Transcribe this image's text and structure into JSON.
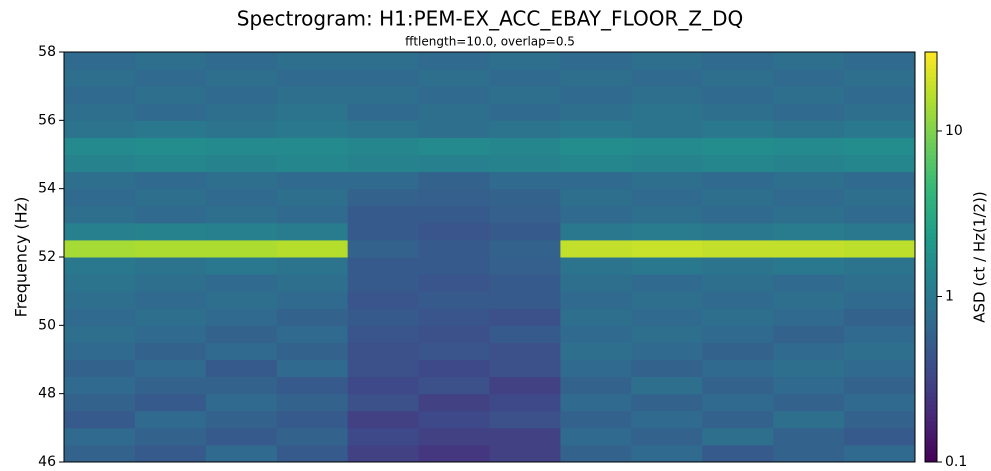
{
  "chart_data": {
    "type": "heatmap",
    "title": "Spectrogram: H1:PEM-EX_ACC_EBAY_FLOOR_Z_DQ",
    "subtitle": "fftlength=10.0, overlap=0.5",
    "ylabel": "Frequency (Hz)",
    "colorbar_label": "ASD (ct / Hz(1/2))",
    "colormap": "viridis",
    "color_log": true,
    "clim": [
      0.1,
      30
    ],
    "cticks": [
      0.1,
      1,
      10
    ],
    "ylim": [
      46,
      58
    ],
    "yticks": [
      46,
      48,
      50,
      52,
      54,
      56,
      58
    ],
    "ybins": [
      46,
      46.5,
      47,
      47.5,
      48,
      48.5,
      49,
      49.5,
      50,
      50.5,
      51,
      51.5,
      52,
      52.5,
      53,
      53.5,
      54,
      54.5,
      55,
      55.5,
      56,
      56.5,
      57,
      57.5,
      58
    ],
    "z": [
      [
        0.6,
        0.5,
        0.7,
        0.5,
        0.3,
        0.25,
        0.3,
        0.6,
        0.7,
        0.5,
        0.6,
        0.7
      ],
      [
        0.7,
        0.6,
        0.5,
        0.6,
        0.35,
        0.3,
        0.3,
        0.7,
        0.6,
        0.8,
        0.6,
        0.5
      ],
      [
        0.5,
        0.7,
        0.6,
        0.5,
        0.3,
        0.35,
        0.4,
        0.6,
        0.7,
        0.6,
        0.8,
        0.6
      ],
      [
        0.6,
        0.5,
        0.7,
        0.6,
        0.4,
        0.3,
        0.35,
        0.7,
        0.6,
        0.7,
        0.6,
        0.7
      ],
      [
        0.7,
        0.6,
        0.6,
        0.5,
        0.35,
        0.4,
        0.3,
        0.6,
        0.8,
        0.6,
        0.7,
        0.6
      ],
      [
        0.6,
        0.7,
        0.5,
        0.7,
        0.4,
        0.35,
        0.4,
        0.7,
        0.6,
        0.7,
        0.8,
        0.7
      ],
      [
        0.7,
        0.6,
        0.7,
        0.6,
        0.4,
        0.45,
        0.4,
        0.8,
        0.7,
        0.6,
        0.7,
        0.8
      ],
      [
        0.8,
        0.7,
        0.6,
        0.7,
        0.45,
        0.4,
        0.5,
        0.7,
        0.8,
        0.7,
        0.6,
        0.7
      ],
      [
        0.7,
        0.8,
        0.7,
        0.6,
        0.5,
        0.45,
        0.4,
        0.8,
        0.7,
        0.8,
        0.7,
        0.6
      ],
      [
        0.8,
        0.7,
        0.8,
        0.7,
        0.45,
        0.5,
        0.5,
        0.7,
        0.8,
        0.7,
        0.8,
        0.7
      ],
      [
        0.9,
        0.8,
        0.7,
        0.8,
        0.5,
        0.45,
        0.5,
        0.8,
        0.7,
        0.8,
        0.7,
        0.8
      ],
      [
        1.0,
        0.9,
        1.0,
        0.9,
        0.5,
        0.5,
        0.55,
        0.9,
        1.0,
        0.9,
        1.0,
        0.9
      ],
      [
        14,
        15,
        15,
        16,
        0.6,
        0.5,
        0.6,
        18,
        19,
        18,
        18,
        17
      ],
      [
        1.2,
        1.3,
        1.2,
        1.1,
        0.5,
        0.45,
        0.5,
        1.0,
        1.1,
        1.0,
        1.1,
        1.0
      ],
      [
        0.8,
        0.7,
        0.8,
        0.7,
        0.5,
        0.5,
        0.55,
        0.7,
        0.8,
        0.7,
        0.8,
        0.7
      ],
      [
        0.7,
        0.8,
        0.7,
        0.8,
        0.6,
        0.55,
        0.6,
        0.8,
        0.7,
        0.8,
        0.7,
        0.8
      ],
      [
        0.8,
        0.7,
        0.8,
        0.7,
        0.7,
        0.6,
        0.7,
        0.7,
        0.8,
        0.7,
        0.8,
        0.7
      ],
      [
        1.3,
        1.4,
        1.3,
        1.4,
        1.3,
        1.2,
        1.3,
        1.4,
        1.3,
        1.4,
        1.3,
        1.4
      ],
      [
        1.5,
        1.6,
        1.5,
        1.5,
        1.4,
        1.5,
        1.4,
        1.6,
        1.5,
        1.6,
        1.5,
        1.6
      ],
      [
        0.9,
        1.0,
        0.9,
        1.0,
        0.9,
        0.8,
        0.9,
        1.0,
        0.9,
        1.0,
        0.9,
        1.0
      ],
      [
        0.8,
        0.7,
        0.8,
        0.9,
        0.7,
        0.8,
        0.7,
        0.8,
        0.9,
        0.8,
        0.7,
        0.8
      ],
      [
        0.7,
        0.8,
        0.7,
        0.8,
        0.8,
        0.7,
        0.8,
        0.7,
        0.8,
        0.7,
        0.8,
        0.7
      ],
      [
        0.8,
        0.7,
        0.8,
        0.7,
        0.7,
        0.8,
        0.7,
        0.8,
        0.7,
        0.8,
        0.7,
        0.8
      ],
      [
        0.7,
        0.8,
        0.7,
        0.8,
        0.8,
        0.7,
        0.8,
        0.7,
        0.8,
        0.7,
        0.8,
        0.7
      ]
    ]
  }
}
